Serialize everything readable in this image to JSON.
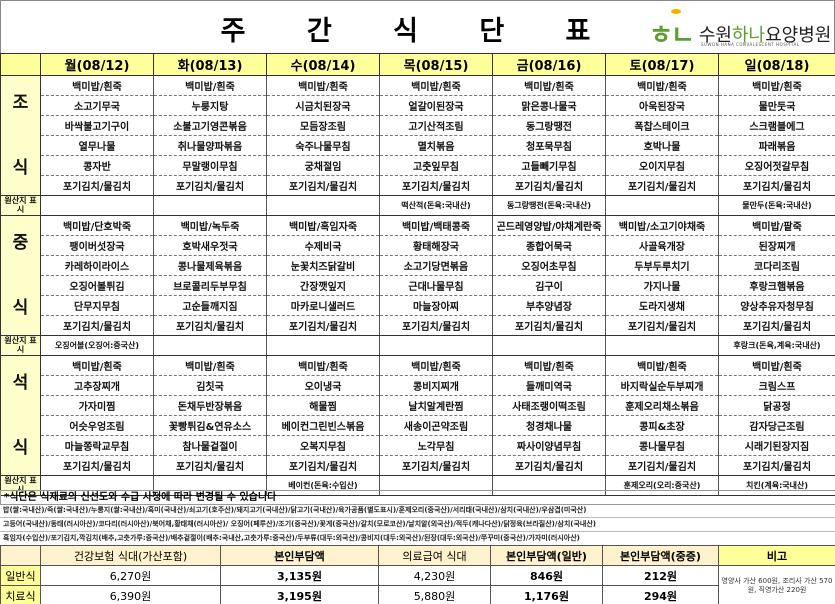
{
  "title": "주 간 식 단 표",
  "logo": {
    "mark": "하나",
    "name_prefix": "수원",
    "name_green": "하나",
    "name_suffix": "요양병원",
    "subtitle": "SUWON HANA CONVALESCENT HOSPITAL"
  },
  "days": [
    "월(08/12)",
    "화(08/13)",
    "수(08/14)",
    "목(08/15)",
    "금(08/16)",
    "토(08/17)",
    "일(08/18)"
  ],
  "origin_label": "원산지 표시",
  "meals": [
    {
      "label": "조 식",
      "rows": [
        [
          "백미밥/흰죽",
          "백미밥/흰죽",
          "백미밥/흰죽",
          "백미밥/흰죽",
          "백미밥/흰죽",
          "백미밥/흰죽",
          "백미밥/흰죽"
        ],
        [
          "소고기무국",
          "누룽지탕",
          "시금치된장국",
          "얼갈이된장국",
          "맑은콩나물국",
          "아욱된장국",
          "물만둣국"
        ],
        [
          "바싹불고기구이",
          "소불고기영콘볶음",
          "모듬장조림",
          "고기산적조림",
          "동그랑땡전",
          "폭찹스테이크",
          "스크램블에그"
        ],
        [
          "열무나물",
          "취나물양파볶음",
          "숙주나물무침",
          "멸치볶음",
          "청포묵무침",
          "호박나물",
          "파래볶음"
        ],
        [
          "콩자반",
          "무말랭이무침",
          "궁채절임",
          "고춧잎무침",
          "고들빼기무침",
          "오이지무침",
          "오징어젓갈무침"
        ],
        [
          "포기김치/물김치",
          "포기김치/물김치",
          "포기김치/물김치",
          "포기김치/물김치",
          "포기김치/물김치",
          "포기김치/물김치",
          "포기김치/물김치"
        ]
      ],
      "origin": [
        "",
        "",
        "",
        "떡산적(돈육:국내산)",
        "동그랑땡전(돈육:국내산)",
        "",
        "물만두(돈육:국내산)"
      ]
    },
    {
      "label": "중 식",
      "rows": [
        [
          "백미밥/단호박죽",
          "백미밥/녹두죽",
          "백미밥/흑임자죽",
          "백미밥/백태콩죽",
          "곤드레영양밥/야채계란죽",
          "백미밥/소고기야채죽",
          "백미밥/팥죽"
        ],
        [
          "팽이버섯장국",
          "호박새우젓국",
          "수제비국",
          "황태해장국",
          "종합어묵국",
          "사골육개장",
          "된장찌개"
        ],
        [
          "카레하이라이스",
          "콩나물제육볶음",
          "눈꽃치즈닭갈비",
          "소고기당면볶음",
          "오징어초무침",
          "두부두루치기",
          "코다리조림"
        ],
        [
          "오징어볼튀김",
          "브로콜리두부무침",
          "간장깻잎지",
          "근대나물무침",
          "김구이",
          "가지나물",
          "후랑크햄볶음"
        ],
        [
          "단무지무침",
          "고순들깨지짐",
          "마카로니샐러드",
          "마늘장아찌",
          "부추양념장",
          "도라지생채",
          "양상추유자청무침"
        ],
        [
          "포기김치/물김치",
          "포기김치/물김치",
          "포기김치/물김치",
          "포기김치/물김치",
          "포기김치/물김치",
          "포기김치/물김치",
          "포기김치/물김치"
        ]
      ],
      "origin": [
        "오징어볼(오징어:중국산)",
        "",
        "",
        "",
        "",
        "",
        "후랑크(돈육,계육:국내산)"
      ]
    },
    {
      "label": "석 식",
      "rows": [
        [
          "백미밥/흰죽",
          "백미밥/흰죽",
          "백미밥/흰죽",
          "백미밥/흰죽",
          "백미밥/흰죽",
          "백미밥/흰죽",
          "백미밥/흰죽"
        ],
        [
          "고추장찌개",
          "김칫국",
          "오이냉국",
          "콩비지찌개",
          "들깨미역국",
          "바지락실순두부찌개",
          "크림스프"
        ],
        [
          "가자미찜",
          "돈채두반장볶음",
          "해물찜",
          "날치알계란찜",
          "사태조랭이떡조림",
          "훈제오리채소볶음",
          "닭공정"
        ],
        [
          "어슷우엉조림",
          "꽃빵튀김&연유소스",
          "베이컨그린빈스볶음",
          "새송이곤약조림",
          "청경채나물",
          "콩피&초장",
          "감자당근조림"
        ],
        [
          "마늘쫑락교무침",
          "참나물겉절이",
          "오복지무침",
          "노각무침",
          "짜사이양념무침",
          "콩나물무침",
          "시래기된장지짐"
        ],
        [
          "포기김치/물김치",
          "포기김치/물김치",
          "포기김치/물김치",
          "포기김치/물김치",
          "포기김치/물김치",
          "포기김치/물김치",
          "포기김치/물김치"
        ]
      ],
      "origin": [
        "",
        "",
        "베이컨(돈육:수입산)",
        "",
        "",
        "훈제오리(오리:중국산)",
        "치킨(계육:국내산)"
      ]
    }
  ],
  "notice": "*식단은 식재료의  신선도와 수급 사정에 따라 변경될 수 있습니다",
  "origin_lines": [
    "밥(쌀:국내산)/죽(쌀:국내산)/누룽지(쌀:국내산)/흑미(국내산)/쇠고기(호주산)/돼지고기(국내산)/닭고기(국내산)/육가공품(별도표시)/훈제오리(중국산)/서리태(국내산)/삼치(국내산)/우삼겹(미국산)",
    "고등어(국내산)/동태(러시아산)/코다리(러시아산)/북어채,황태채(러시아산)/ 오징어(페루산)/조기(중국산)/꽃게(중국산)/갈치(모로코산)/날치알(외국산)/적두(캐나다산)/닭정육(브라질산)/삼치(국내산)",
    "흑임자(수입산)/포기김치,깍김치(배추,고춧가루:중국산)/배추겉절이(배추:국내산,고춧가루:중국산)/두부류(대두:외국산)/콩비지(대두:외국산)/된장(대두:외국산)/쭈꾸미(중국산)/가자미(러시아산)"
  ],
  "cost_table": {
    "headers": [
      "건강보험 식대(가산포함)",
      "본인부담액",
      "의료급여 식대",
      "본인부담액(일반)",
      "본인부담액(중증)",
      "비고"
    ],
    "rows": [
      {
        "label": "일반식",
        "values": [
          "6,270원",
          "3,135원",
          "4,230원",
          "846원",
          "212원"
        ]
      },
      {
        "label": "치료식",
        "values": [
          "6,390원",
          "3,195원",
          "5,880원",
          "1,176원",
          "294원"
        ]
      }
    ],
    "note": "영양사 가산 600원, 조리사 가산 570원, 직영가산 220원"
  }
}
